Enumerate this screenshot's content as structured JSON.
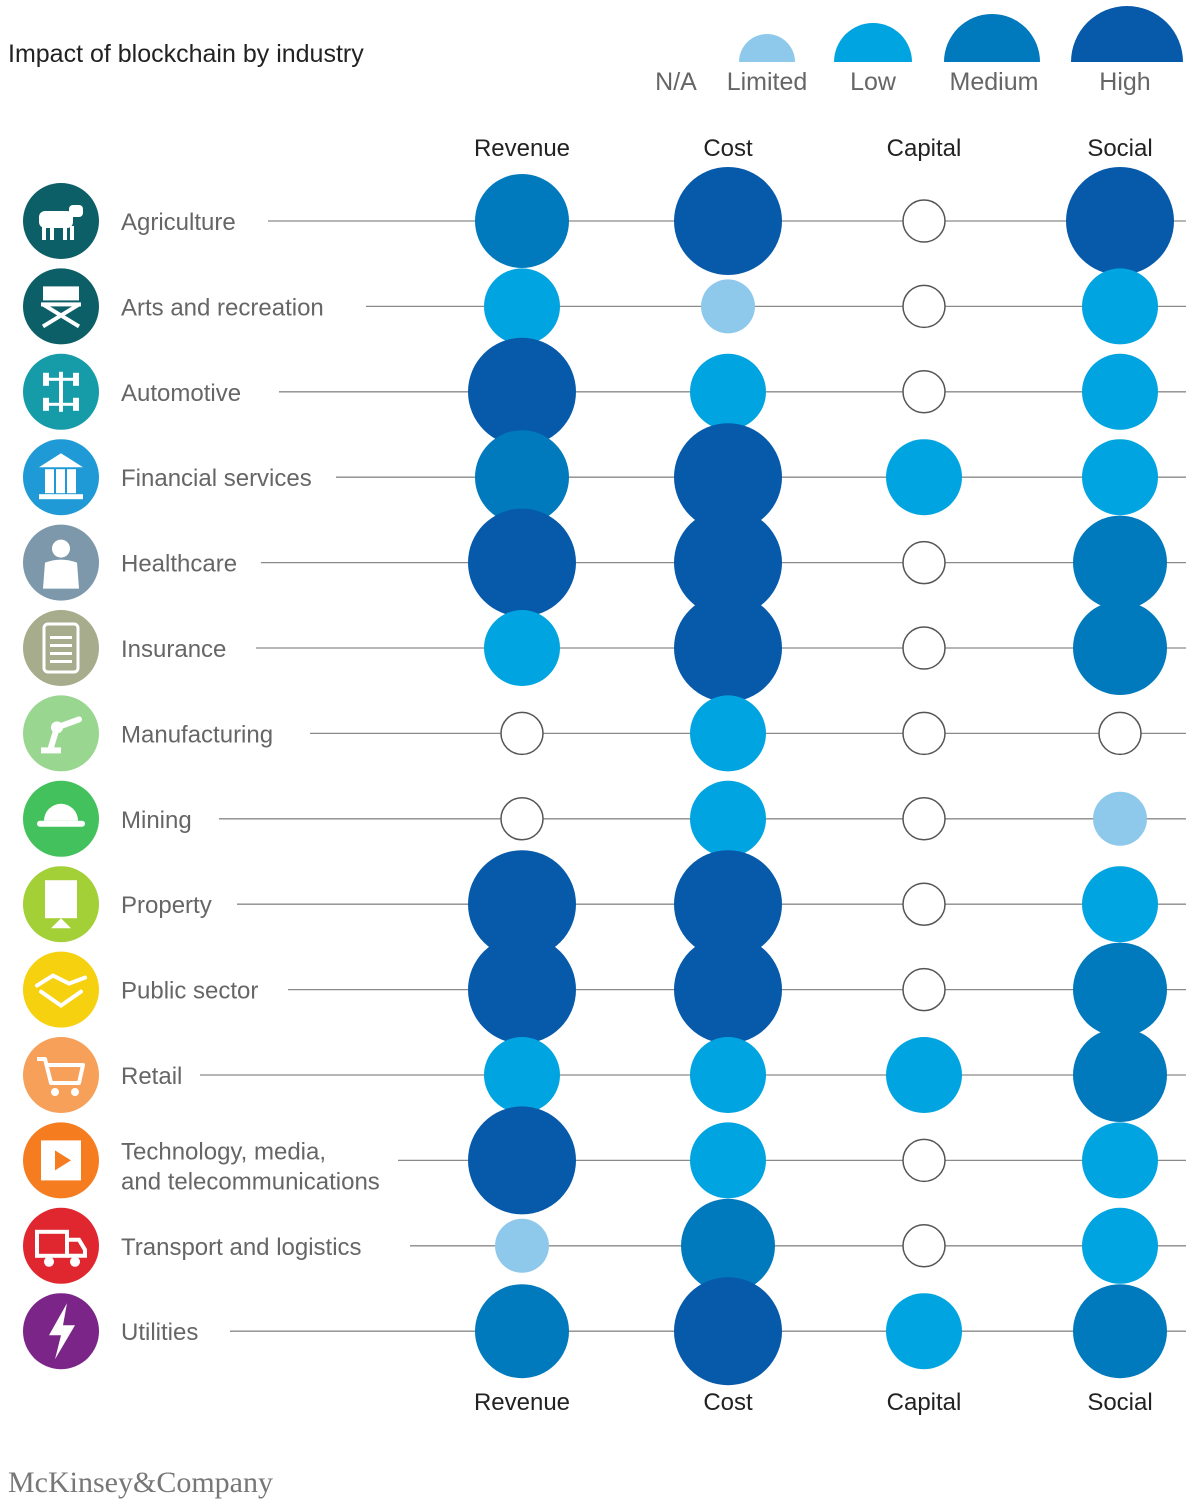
{
  "title": "Impact of blockchain by industry",
  "source": "McKinsey&Company",
  "chart_data": {
    "type": "bubble-matrix",
    "title": "Impact of blockchain by industry",
    "levels": [
      "N/A",
      "Limited",
      "Low",
      "Medium",
      "High"
    ],
    "legend": [
      {
        "label": "N/A",
        "level": "N/A"
      },
      {
        "label": "Limited",
        "level": "Limited"
      },
      {
        "label": "Low",
        "level": "Low"
      },
      {
        "label": "Medium",
        "level": "Medium"
      },
      {
        "label": "High",
        "level": "High"
      }
    ],
    "level_colors": {
      "N/A": "#ffffff",
      "Limited": "#8ec9ec",
      "Low": "#00a4e0",
      "Medium": "#0079bd",
      "High": "#075aaa"
    },
    "columns": [
      "Revenue",
      "Cost",
      "Capital",
      "Social"
    ],
    "rows": [
      {
        "industry": "Agriculture",
        "icon": "cow-icon",
        "icon_color": "#0c5f66",
        "values": [
          "Medium",
          "High",
          "N/A",
          "High"
        ]
      },
      {
        "industry": "Arts and recreation",
        "icon": "directors-chair-icon",
        "icon_color": "#0c5f66",
        "values": [
          "Low",
          "Limited",
          "N/A",
          "Low"
        ]
      },
      {
        "industry": "Automotive",
        "icon": "car-chassis-icon",
        "icon_color": "#159ca8",
        "values": [
          "High",
          "Low",
          "N/A",
          "Low"
        ]
      },
      {
        "industry": "Financial services",
        "icon": "bank-building-icon",
        "icon_color": "#1f9ad6",
        "values": [
          "Medium",
          "High",
          "Low",
          "Low"
        ]
      },
      {
        "industry": "Healthcare",
        "icon": "doctor-icon",
        "icon_color": "#7d98ab",
        "values": [
          "High",
          "High",
          "N/A",
          "Medium"
        ]
      },
      {
        "industry": "Insurance",
        "icon": "tablet-form-icon",
        "icon_color": "#a7ad8c",
        "values": [
          "Low",
          "High",
          "N/A",
          "Medium"
        ]
      },
      {
        "industry": "Manufacturing",
        "icon": "robot-arm-icon",
        "icon_color": "#99d68f",
        "values": [
          "N/A",
          "Low",
          "N/A",
          "N/A"
        ]
      },
      {
        "industry": "Mining",
        "icon": "hard-hat-icon",
        "icon_color": "#43c15c",
        "values": [
          "N/A",
          "Low",
          "N/A",
          "Limited"
        ]
      },
      {
        "industry": "Property",
        "icon": "building-icon",
        "icon_color": "#a3cf37",
        "values": [
          "High",
          "High",
          "N/A",
          "Low"
        ]
      },
      {
        "industry": "Public sector",
        "icon": "handshake-icon",
        "icon_color": "#f5d10f",
        "values": [
          "High",
          "High",
          "N/A",
          "Medium"
        ]
      },
      {
        "industry": "Retail",
        "icon": "shopping-cart-icon",
        "icon_color": "#f6a05a",
        "values": [
          "Low",
          "Low",
          "Low",
          "Medium"
        ]
      },
      {
        "industry": "Technology, media,",
        "industry_line2": "and telecommunications",
        "icon": "video-play-icon",
        "icon_color": "#f57c1f",
        "values": [
          "High",
          "Low",
          "N/A",
          "Low"
        ]
      },
      {
        "industry": "Transport and logistics",
        "icon": "delivery-truck-icon",
        "icon_color": "#e0262f",
        "values": [
          "Limited",
          "Medium",
          "N/A",
          "Low"
        ]
      },
      {
        "industry": "Utilities",
        "icon": "lightning-bolt-icon",
        "icon_color": "#7a2587",
        "values": [
          "Medium",
          "High",
          "Low",
          "Medium"
        ]
      }
    ]
  }
}
